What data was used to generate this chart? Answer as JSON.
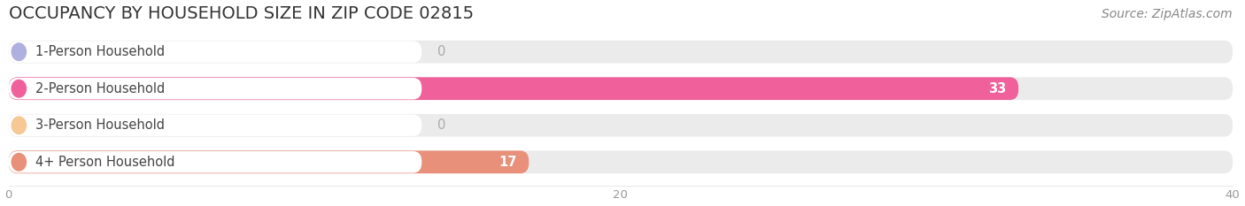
{
  "title": "OCCUPANCY BY HOUSEHOLD SIZE IN ZIP CODE 02815",
  "source": "Source: ZipAtlas.com",
  "categories": [
    "1-Person Household",
    "2-Person Household",
    "3-Person Household",
    "4+ Person Household"
  ],
  "values": [
    0,
    33,
    0,
    17
  ],
  "bar_colors": [
    "#b0b0e0",
    "#f0609a",
    "#f5c896",
    "#e8907a"
  ],
  "label_circle_colors": [
    "#b0b0e0",
    "#f0609a",
    "#f5c896",
    "#e8907a"
  ],
  "background_color": "#ffffff",
  "row_bg_color": "#ebebeb",
  "xlim": [
    0,
    40
  ],
  "xticks": [
    0,
    20,
    40
  ],
  "title_fontsize": 14,
  "source_fontsize": 10,
  "label_fontsize": 10.5,
  "value_fontsize": 10.5
}
